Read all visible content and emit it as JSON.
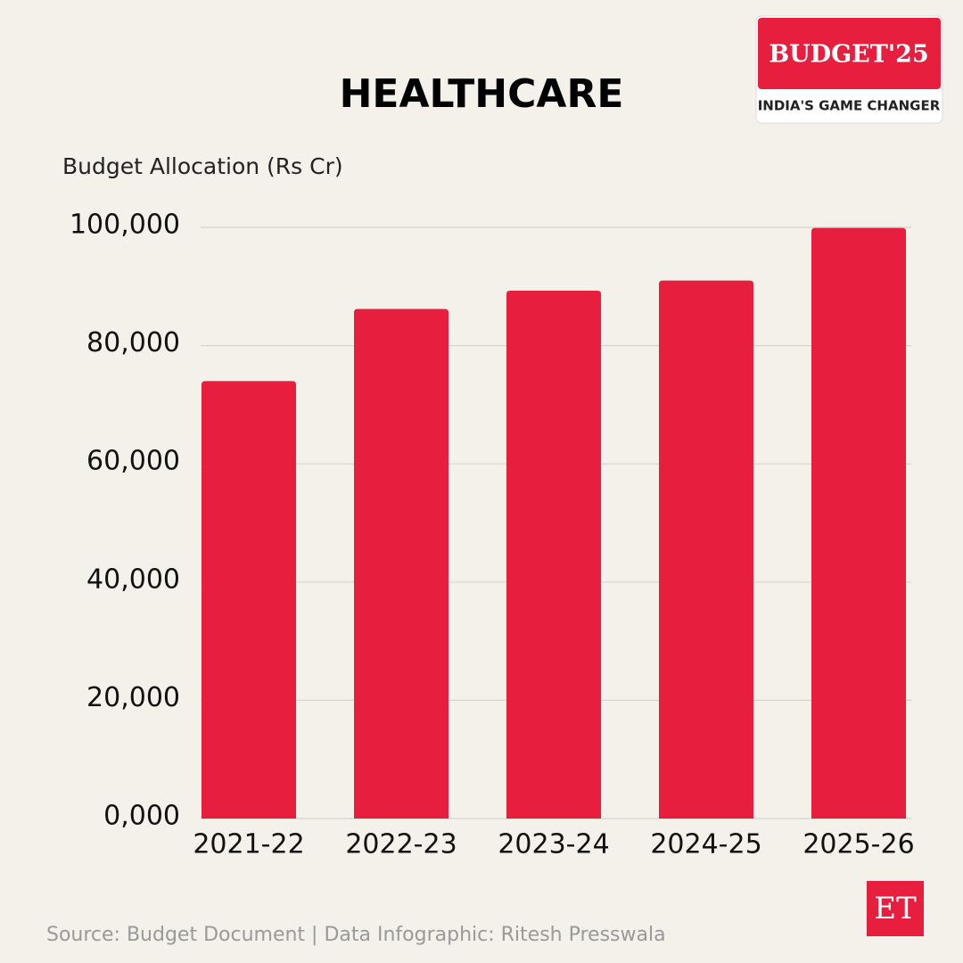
{
  "chart_data": {
    "type": "bar",
    "title": "HEALTHCARE",
    "y_label": "Budget Allocation (Rs Cr)",
    "categories": [
      "2021-22",
      "2022-23",
      "2023-24",
      "2024-25",
      "2025-26"
    ],
    "values": [
      74000,
      86200,
      89300,
      91000,
      99900
    ],
    "color": "#e81e3f",
    "ylim": [
      0,
      100000
    ],
    "yticks": [
      {
        "value": 0,
        "label": "0,000"
      },
      {
        "value": 20000,
        "label": "20,000"
      },
      {
        "value": 40000,
        "label": "40,000"
      },
      {
        "value": 60000,
        "label": "60,000"
      },
      {
        "value": 80000,
        "label": "80,000"
      },
      {
        "value": 100000,
        "label": "100,000"
      }
    ],
    "grid": true
  },
  "badge": {
    "title": "BUDGET'25",
    "subtitle": "INDIA'S GAME CHANGER"
  },
  "logo": "ET",
  "source": "Source: Budget Document | Data Infographic: Ritesh Presswala"
}
